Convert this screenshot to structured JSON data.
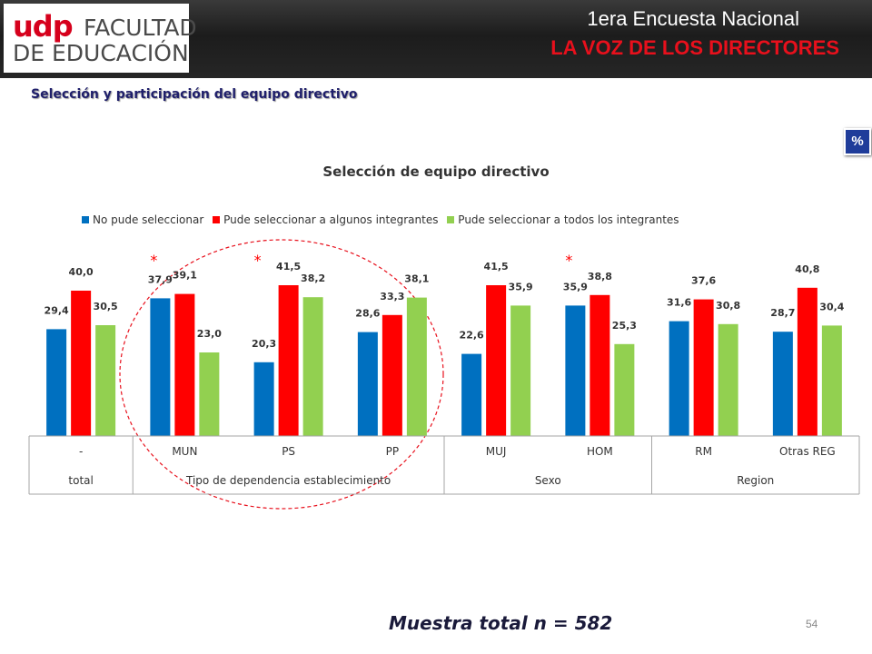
{
  "header": {
    "logo_udp": "udp",
    "logo_line1": "FACULTAD",
    "logo_line2": "DE EDUCACIÓN",
    "title_line1": "1era Encuesta Nacional",
    "title_line2": "LA VOZ DE LOS DIRECTORES"
  },
  "subtitle": "Selección y participación del equipo directivo",
  "badge": "%",
  "footer": "Muestra total n = 582",
  "page_number": "54",
  "colors": {
    "blue": "#0070c0",
    "red": "#ff0000",
    "green": "#92d050",
    "circle": "#e8101c"
  },
  "chart_data": {
    "type": "bar",
    "title": "Selección de equipo directivo",
    "categories": [
      "-",
      "MUN",
      "PS",
      "PP",
      "MUJ",
      "HOM",
      "RM",
      "Otras REG"
    ],
    "groups": [
      {
        "label": "total",
        "span": 1
      },
      {
        "label": "Tipo de dependencia establecimiento",
        "span": 3
      },
      {
        "label": "Sexo",
        "span": 2
      },
      {
        "label": "Region",
        "span": 2
      }
    ],
    "series": [
      {
        "name": "No pude seleccionar",
        "color": "#0070c0",
        "values": [
          29.4,
          37.9,
          20.3,
          28.6,
          22.6,
          35.9,
          31.6,
          28.7
        ],
        "labels": [
          "29,4",
          "37,9",
          "20,3",
          "28,6",
          "22,6",
          "35,9",
          "31,6",
          "28,7"
        ]
      },
      {
        "name": "Pude seleccionar a algunos integrantes",
        "color": "#ff0000",
        "values": [
          40.0,
          39.1,
          41.5,
          33.3,
          41.5,
          38.8,
          37.6,
          40.8
        ],
        "labels": [
          "40,0",
          "39,1",
          "41,5",
          "33,3",
          "41,5",
          "38,8",
          "37,6",
          "40,8"
        ]
      },
      {
        "name": "Pude seleccionar a todos los integrantes",
        "color": "#92d050",
        "values": [
          30.5,
          23.0,
          38.2,
          38.1,
          35.9,
          25.3,
          30.8,
          30.4
        ],
        "labels": [
          "30,5",
          "23,0",
          "38,2",
          "38,1",
          "35,9",
          "25,3",
          "30,8",
          "30,4"
        ]
      }
    ],
    "ylim": [
      0,
      45
    ],
    "significance_markers": [
      {
        "category": "MUN",
        "mark": "*"
      },
      {
        "category": "PS",
        "mark": "*"
      },
      {
        "category": "HOM",
        "mark": "*"
      }
    ],
    "legend_position": "top",
    "grid": false
  }
}
